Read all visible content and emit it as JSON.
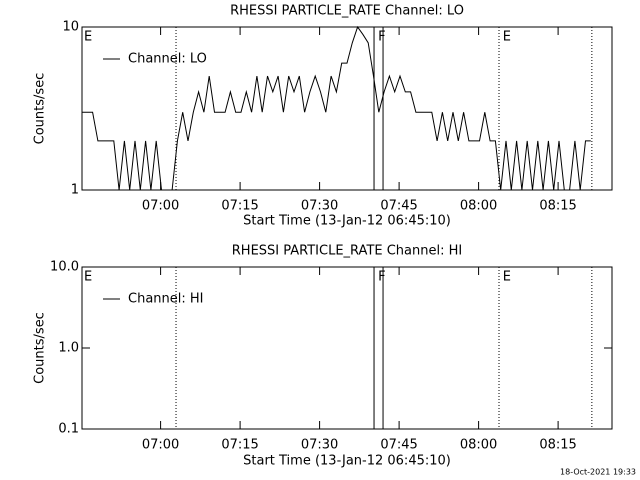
{
  "chart_data": [
    {
      "type": "line",
      "title": "RHESSI PARTICLE_RATE Channel: LO",
      "xlabel": "Start Time (13-Jan-12 06:45:10)",
      "ylabel": "Counts/sec",
      "log_y": true,
      "xlim": [
        0,
        100
      ],
      "ylim": [
        1,
        10
      ],
      "yticks": [
        1,
        10
      ],
      "xticks": [
        {
          "value": 14.83,
          "label": "07:00"
        },
        {
          "value": 29.83,
          "label": "07:15"
        },
        {
          "value": 44.83,
          "label": "07:30"
        },
        {
          "value": 59.83,
          "label": "07:45"
        },
        {
          "value": 74.83,
          "label": "08:00"
        },
        {
          "value": 89.83,
          "label": "08:15"
        }
      ],
      "legend": "upper left",
      "x": [
        0,
        1,
        2,
        3,
        4,
        5,
        6,
        7,
        8,
        9,
        10,
        11,
        12,
        13,
        14,
        15,
        16,
        17,
        18,
        19,
        20,
        21,
        22,
        23,
        24,
        25,
        26,
        27,
        28,
        29,
        30,
        31,
        32,
        33,
        34,
        35,
        36,
        37,
        38,
        39,
        40,
        41,
        42,
        43,
        44,
        45,
        46,
        47,
        48,
        49,
        50,
        51,
        52,
        53,
        54,
        55,
        56,
        57,
        58,
        59,
        60,
        61,
        62,
        63,
        64,
        65,
        66,
        67,
        68,
        69,
        70,
        71,
        72,
        73,
        74,
        75,
        76,
        77,
        78,
        79,
        80,
        81,
        82,
        83,
        84,
        85,
        86,
        87,
        88,
        89,
        90,
        91,
        92,
        93,
        94,
        95,
        96
      ],
      "series": [
        {
          "name": "Channel: LO",
          "color": "#000000",
          "values": [
            3,
            3,
            3,
            2,
            2,
            2,
            2,
            1,
            2,
            1,
            2,
            1,
            2,
            1,
            2,
            1,
            1,
            1,
            2,
            3,
            2,
            3,
            4,
            3,
            5,
            3,
            3,
            3,
            4,
            3,
            3,
            4,
            3,
            5,
            3,
            5,
            4,
            5,
            3,
            5,
            4,
            5,
            3,
            4,
            5,
            4,
            3,
            5,
            4,
            6,
            6,
            8,
            10,
            9,
            8,
            5,
            3,
            4,
            5,
            4,
            5,
            4,
            4,
            3,
            3,
            3,
            3,
            2,
            3,
            2,
            3,
            2,
            3,
            2,
            2,
            2,
            3,
            2,
            2,
            1,
            2,
            1,
            2,
            1,
            2,
            1,
            2,
            1,
            2,
            1,
            2,
            1,
            1,
            2,
            1,
            2,
            2
          ]
        }
      ],
      "flags": [
        {
          "x": 17.74,
          "style": "dotted"
        },
        {
          "x": 55.1,
          "style": "solid"
        },
        {
          "x": 56.8,
          "style": "solid"
        },
        {
          "x": 78.68,
          "style": "dotted"
        },
        {
          "x": 96.2,
          "style": "dotted"
        }
      ],
      "annotations": [
        {
          "text": "E",
          "x": 0
        },
        {
          "text": "F",
          "x": 55.5
        },
        {
          "text": "E",
          "x": 79
        }
      ]
    },
    {
      "type": "line",
      "title": "RHESSI PARTICLE_RATE Channel: HI",
      "xlabel": "Start Time (13-Jan-12 06:45:10)",
      "ylabel": "Counts/sec",
      "log_y": true,
      "xlim": [
        0,
        100
      ],
      "ylim": [
        0.1,
        10
      ],
      "yticks": [
        0.1,
        {
          "value": 1,
          "label": "1.0"
        },
        {
          "value": 10,
          "label": "10.0"
        }
      ],
      "xticks": [
        {
          "value": 14.83,
          "label": "07:00"
        },
        {
          "value": 29.83,
          "label": "07:15"
        },
        {
          "value": 44.83,
          "label": "07:30"
        },
        {
          "value": 59.83,
          "label": "07:45"
        },
        {
          "value": 74.83,
          "label": "08:00"
        },
        {
          "value": 89.83,
          "label": "08:15"
        }
      ],
      "legend": "upper left",
      "x": [],
      "series": [
        {
          "name": "Channel: HI",
          "color": "#000000",
          "values": []
        }
      ],
      "flags": [
        {
          "x": 17.74,
          "style": "dotted"
        },
        {
          "x": 55.1,
          "style": "solid"
        },
        {
          "x": 56.8,
          "style": "solid"
        },
        {
          "x": 78.68,
          "style": "dotted"
        },
        {
          "x": 96.2,
          "style": "dotted"
        }
      ],
      "annotations": [
        {
          "text": "E",
          "x": 0
        },
        {
          "text": "F",
          "x": 55.5
        },
        {
          "text": "E",
          "x": 79
        }
      ]
    }
  ],
  "footer": "18-Oct-2021 19:33"
}
